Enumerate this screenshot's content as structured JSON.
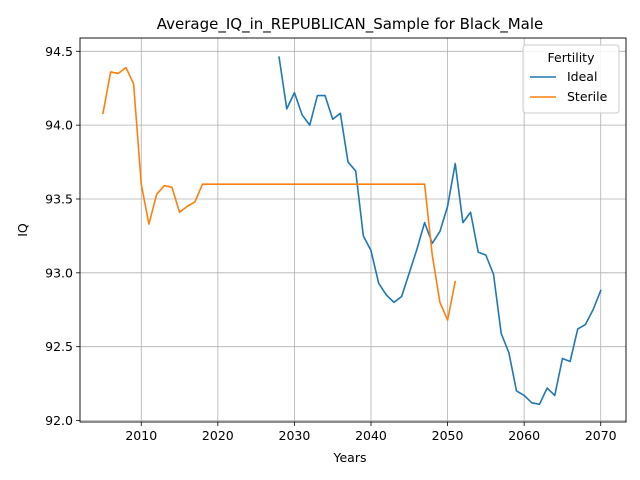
{
  "chart_data": {
    "type": "line",
    "title": "Average_IQ_in_REPUBLICAN_Sample for Black_Male",
    "xlabel": "Years",
    "ylabel": "IQ",
    "xlim": [
      2002,
      2073.3
    ],
    "ylim": [
      91.99,
      94.59
    ],
    "grid": true,
    "xticks": [
      2010,
      2020,
      2030,
      2040,
      2050,
      2060,
      2070
    ],
    "yticks": [
      92.0,
      92.5,
      93.0,
      93.5,
      94.0,
      94.5
    ],
    "ytick_labels": [
      "92.0",
      "92.5",
      "93.0",
      "93.5",
      "94.0",
      "94.5"
    ],
    "legend": {
      "title": "Fertility",
      "placement": "top-right"
    },
    "series": [
      {
        "name": "Ideal",
        "color": "#1f77b4",
        "x": [
          2028,
          2029,
          2030,
          2031,
          2032,
          2033,
          2034,
          2035,
          2036,
          2037,
          2038,
          2039,
          2040,
          2041,
          2042,
          2043,
          2044,
          2045,
          2046,
          2047,
          2048,
          2049,
          2050,
          2051,
          2052,
          2053,
          2054,
          2055,
          2056,
          2057,
          2058,
          2059,
          2060,
          2061,
          2062,
          2063,
          2064,
          2065,
          2066,
          2067,
          2068,
          2069,
          2070
        ],
        "values": [
          94.46,
          94.11,
          94.22,
          94.07,
          94.0,
          94.2,
          94.2,
          94.04,
          94.08,
          93.75,
          93.69,
          93.25,
          93.15,
          92.93,
          92.85,
          92.8,
          92.84,
          93.0,
          93.16,
          93.34,
          93.2,
          93.28,
          93.45,
          93.74,
          93.34,
          93.41,
          93.14,
          93.12,
          92.99,
          92.59,
          92.46,
          92.2,
          92.17,
          92.12,
          92.11,
          92.22,
          92.17,
          92.42,
          92.4,
          92.62,
          92.65,
          92.75,
          92.88
        ]
      },
      {
        "name": "Sterile",
        "color": "#ff7f0e",
        "x": [
          2005,
          2006,
          2007,
          2008,
          2009,
          2010,
          2011,
          2012,
          2013,
          2014,
          2015,
          2016,
          2017,
          2018,
          2019,
          2020,
          2021,
          2022,
          2023,
          2024,
          2025,
          2026,
          2027,
          2028,
          2029,
          2030,
          2031,
          2032,
          2033,
          2034,
          2035,
          2036,
          2037,
          2038,
          2039,
          2040,
          2041,
          2042,
          2043,
          2044,
          2045,
          2046,
          2047,
          2048,
          2049,
          2050,
          2051
        ],
        "values": [
          94.08,
          94.36,
          94.35,
          94.39,
          94.28,
          93.6,
          93.33,
          93.53,
          93.59,
          93.58,
          93.41,
          93.45,
          93.48,
          93.6,
          93.6,
          93.6,
          93.6,
          93.6,
          93.6,
          93.6,
          93.6,
          93.6,
          93.6,
          93.6,
          93.6,
          93.6,
          93.6,
          93.6,
          93.6,
          93.6,
          93.6,
          93.6,
          93.6,
          93.6,
          93.6,
          93.6,
          93.6,
          93.6,
          93.6,
          93.6,
          93.6,
          93.6,
          93.6,
          93.12,
          92.8,
          92.68,
          92.94
        ]
      }
    ]
  }
}
